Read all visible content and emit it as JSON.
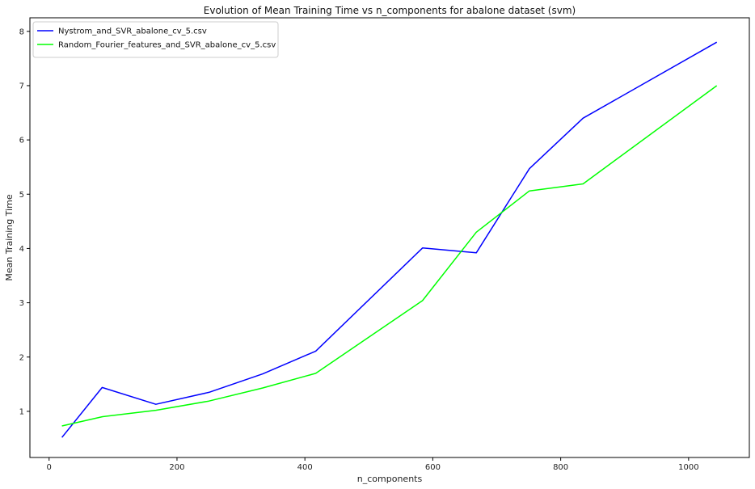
{
  "chart_data": {
    "type": "line",
    "title": "Evolution of Mean Training Time vs n_components for abalone dataset (svm)",
    "xlabel": "n_components",
    "ylabel": "Mean Training Time",
    "xlim": [
      -30,
      1095
    ],
    "ylim": [
      0.15,
      8.25
    ],
    "xticks": [
      0,
      200,
      400,
      600,
      800,
      1000
    ],
    "yticks": [
      1,
      2,
      3,
      4,
      5,
      6,
      7,
      8
    ],
    "grid": false,
    "legend_position": "top-left",
    "series": [
      {
        "name": "Nystrom_and_SVR_abalone_cv_5.csv",
        "color": "#0000ff",
        "x": [
          20,
          83,
          167,
          250,
          334,
          417,
          584,
          668,
          751,
          835,
          1044
        ],
        "y": [
          0.52,
          1.44,
          1.13,
          1.35,
          1.69,
          2.11,
          4.01,
          3.92,
          5.47,
          6.4,
          7.8
        ]
      },
      {
        "name": "Random_Fourier_features_and_SVR_abalone_cv_5.csv",
        "color": "#00ff00",
        "x": [
          20,
          83,
          167,
          250,
          334,
          417,
          584,
          668,
          751,
          835,
          1044
        ],
        "y": [
          0.73,
          0.9,
          1.02,
          1.19,
          1.43,
          1.7,
          3.04,
          4.3,
          5.06,
          5.19,
          7.0
        ]
      }
    ]
  }
}
